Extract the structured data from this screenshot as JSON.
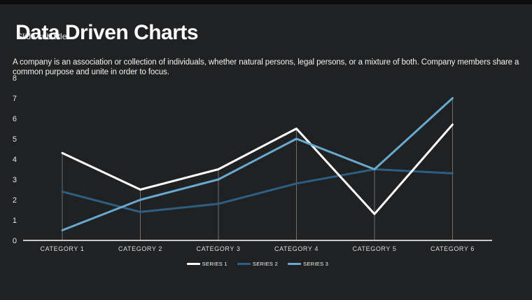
{
  "slide": {
    "title": "Data Driven Charts",
    "subtitle": "Slide sub title",
    "body_text": "A company is an association or collection of individuals,  whether natural  persons, legal persons, or a mixture of both. Company members share a common purpose and unite in order to focus."
  },
  "chart_data": {
    "type": "line",
    "categories": [
      "CATEGORY 1",
      "CATEGORY 2",
      "CATEGORY 3",
      "CATEGORY 4",
      "CATEGORY 5",
      "CATEGORY 6"
    ],
    "series": [
      {
        "name": "SERIES 1",
        "color": "#ffffff",
        "values": [
          4.3,
          2.5,
          3.5,
          5.5,
          1.3,
          5.7
        ]
      },
      {
        "name": "SERIES 2",
        "color": "#2d5f82",
        "values": [
          2.4,
          1.4,
          1.8,
          2.8,
          3.5,
          3.3
        ]
      },
      {
        "name": "SERIES 3",
        "color": "#6aa9cf",
        "values": [
          0.5,
          2.0,
          3.0,
          5.0,
          3.5,
          7.0
        ]
      }
    ],
    "ylim": [
      0,
      8
    ],
    "yticks": [
      0,
      1,
      2,
      3,
      4,
      5,
      6,
      7,
      8
    ],
    "grid": "category-drop-lines",
    "legend_position": "bottom-center",
    "axis_color": "#c8c8c8",
    "drop_line_color": "#7d7d7d",
    "background_color": "#1f2123",
    "text_color": "#ffffff"
  }
}
